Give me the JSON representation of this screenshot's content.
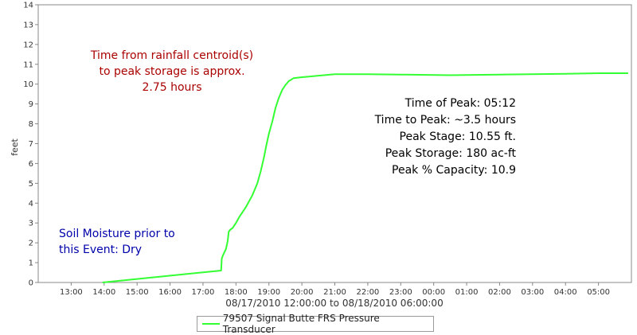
{
  "chart_data": {
    "type": "line",
    "ylabel": "feet",
    "xlabel": "08/17/2010 12:00:00 to 08/18/2010 06:00:00",
    "ylim": [
      0,
      14
    ],
    "yticks": [
      0,
      1,
      2,
      3,
      4,
      5,
      6,
      7,
      8,
      9,
      10,
      11,
      12,
      13,
      14
    ],
    "xticks": [
      "13:00",
      "14:00",
      "15:00",
      "16:00",
      "17:00",
      "18:00",
      "19:00",
      "20:00",
      "21:00",
      "22:00",
      "23:00",
      "00:00",
      "01:00",
      "02:00",
      "03:00",
      "04:00",
      "05:00"
    ],
    "xrange_hours": [
      12.0,
      30.0
    ],
    "grid": false,
    "legend_position": "bottom",
    "series": [
      {
        "name": "79507 Signal Butte FRS Pressure Transducer",
        "color": "#33ff33",
        "x_hours": [
          13.95,
          17.55,
          17.57,
          17.6,
          17.7,
          17.75,
          17.78,
          17.82,
          17.9,
          18.0,
          18.1,
          18.3,
          18.5,
          18.65,
          18.75,
          18.85,
          18.92,
          19.0,
          19.1,
          19.2,
          19.3,
          19.4,
          19.5,
          19.6,
          19.75,
          20.0,
          21.0,
          22.0,
          23.0,
          24.5,
          26.0,
          28.0,
          29.0,
          29.9
        ],
        "values": [
          0.0,
          0.6,
          1.2,
          1.35,
          1.7,
          2.1,
          2.55,
          2.65,
          2.75,
          3.0,
          3.3,
          3.8,
          4.4,
          5.0,
          5.6,
          6.3,
          6.9,
          7.5,
          8.1,
          8.8,
          9.3,
          9.7,
          9.95,
          10.15,
          10.3,
          10.35,
          10.5,
          10.5,
          10.48,
          10.45,
          10.48,
          10.52,
          10.55,
          10.55
        ]
      }
    ],
    "annotations": [
      {
        "color": "#aa0000",
        "align": "center",
        "lines": [
          "Time from rainfall centroid(s)",
          "to peak storage is approx.",
          "2.75 hours"
        ]
      },
      {
        "color": "#000000",
        "align": "right",
        "lines": [
          "Time of Peak: 05:12",
          "Time to Peak: ~3.5 hours",
          "Peak Stage: 10.55 ft.",
          "Peak Storage: 180 ac-ft",
          "Peak % Capacity: 10.9"
        ]
      },
      {
        "color": "#0000aa",
        "align": "left",
        "lines": [
          "Soil Moisture prior to",
          "this Event: Dry"
        ]
      }
    ]
  }
}
